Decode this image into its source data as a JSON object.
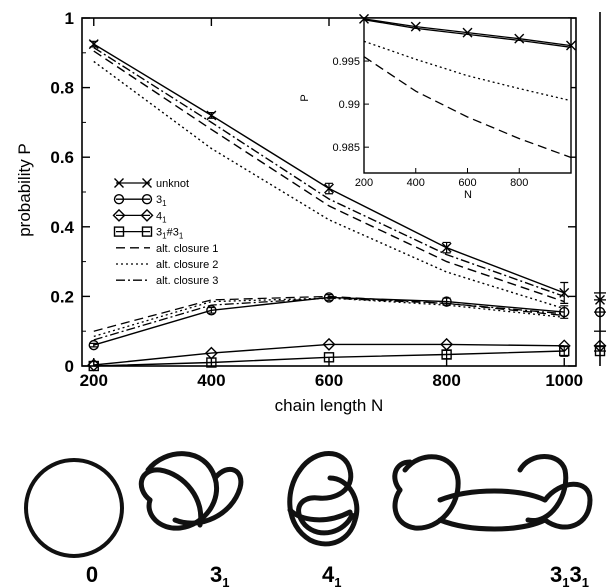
{
  "chart_data": [
    {
      "type": "line",
      "xlabel": "chain length N",
      "ylabel": "probability P",
      "xlim": [
        180,
        1020
      ],
      "ylim": [
        0,
        1
      ],
      "xticks": [
        "200",
        "400",
        "600",
        "800",
        "1000"
      ],
      "yticks": [
        "0",
        "0.2",
        "0.4",
        "0.6",
        "0.8",
        "1"
      ],
      "x": [
        200,
        400,
        600,
        800,
        1000
      ],
      "series": [
        {
          "name": "unknot",
          "marker": "x",
          "dash": "solid",
          "values": [
            0.925,
            0.72,
            0.51,
            0.34,
            0.21
          ],
          "errors": [
            0.008,
            0.008,
            0.015,
            0.015,
            0.03
          ]
        },
        {
          "name": "3",
          "sub": "1",
          "marker": "o",
          "dash": "solid",
          "values": [
            0.06,
            0.16,
            0.197,
            0.185,
            0.155
          ],
          "errors": [
            0.005,
            0.008,
            0.008,
            0.01,
            0.018
          ]
        },
        {
          "name": "4",
          "sub": "1",
          "marker": "d",
          "dash": "solid",
          "values": [
            0.003,
            0.037,
            0.062,
            0.062,
            0.058
          ],
          "errors": [
            0,
            0,
            0,
            0,
            0
          ]
        },
        {
          "name": "3",
          "sub": "1",
          "name2": "#3",
          "sub2": "1",
          "marker": "s",
          "dash": "solid",
          "values": [
            0.0,
            0.01,
            0.025,
            0.033,
            0.043
          ],
          "errors": [
            0,
            0,
            0,
            0.012,
            0.015
          ]
        },
        {
          "name": "alt. closure 1",
          "marker": "none",
          "dash": "dash",
          "values": [
            0.905,
            0.68,
            0.46,
            0.3,
            0.185
          ]
        },
        {
          "name": "alt. closure 2",
          "marker": "none",
          "dash": "dot",
          "values": [
            0.875,
            0.625,
            0.42,
            0.27,
            0.165
          ]
        },
        {
          "name": "alt. closure 3",
          "marker": "none",
          "dash": "dashdot",
          "values": [
            0.915,
            0.7,
            0.48,
            0.32,
            0.2
          ]
        }
      ],
      "knot_alt_curves": [
        {
          "dash": "dash",
          "values": [
            0.1,
            0.19,
            0.2,
            0.18,
            0.145
          ]
        },
        {
          "dash": "dot",
          "values": [
            0.085,
            0.185,
            0.195,
            0.175,
            0.14
          ]
        },
        {
          "dash": "dashdot",
          "values": [
            0.075,
            0.175,
            0.195,
            0.18,
            0.15
          ]
        }
      ]
    },
    {
      "type": "line",
      "inset": true,
      "xlabel": "N",
      "ylabel": "P",
      "xlim": [
        200,
        1000
      ],
      "ylim": [
        0.982,
        1.0
      ],
      "xticks": [
        "200",
        "400",
        "600",
        "800"
      ],
      "yticks": [
        "0.985",
        "0.99",
        "0.995"
      ],
      "x": [
        200,
        400,
        600,
        800,
        1000
      ],
      "series": [
        {
          "marker": "x",
          "dash": "solid",
          "values": [
            0.9999,
            0.999,
            0.9983,
            0.9976,
            0.9968
          ]
        },
        {
          "dash": "solid2",
          "values": [
            0.9998,
            0.9988,
            0.9981,
            0.9974,
            0.9966
          ]
        },
        {
          "dash": "dot",
          "values": [
            0.9973,
            0.9952,
            0.9933,
            0.9918,
            0.9904
          ]
        },
        {
          "dash": "dash",
          "values": [
            0.9955,
            0.9915,
            0.9885,
            0.986,
            0.9838
          ]
        }
      ]
    }
  ],
  "legend": [
    {
      "marker": "x",
      "dash": "solid",
      "label": "unknot",
      "sub": "",
      "label2": "",
      "sub2": ""
    },
    {
      "marker": "o",
      "dash": "solid",
      "label": "3",
      "sub": "1",
      "label2": "",
      "sub2": ""
    },
    {
      "marker": "d",
      "dash": "solid",
      "label": "4",
      "sub": "1",
      "label2": "",
      "sub2": ""
    },
    {
      "marker": "s",
      "dash": "solid",
      "label": "3",
      "sub": "1",
      "label2": "#3",
      "sub2": "1"
    },
    {
      "marker": "none",
      "dash": "dash",
      "label": "alt. closure 1",
      "sub": "",
      "label2": "",
      "sub2": ""
    },
    {
      "marker": "none",
      "dash": "dot",
      "label": "alt. closure 2",
      "sub": "",
      "label2": "",
      "sub2": ""
    },
    {
      "marker": "none",
      "dash": "dashdot",
      "label": "alt. closure 3",
      "sub": "",
      "label2": "",
      "sub2": ""
    }
  ],
  "knot_labels": [
    {
      "main": "0",
      "sub": ""
    },
    {
      "main": "3",
      "sub": "1"
    },
    {
      "main": "4",
      "sub": "1"
    },
    {
      "main": "3",
      "sub": "1",
      "main2": "3",
      "sub2": "1"
    }
  ],
  "side_values": [
    0.21,
    0.19,
    0.155,
    0.1,
    0.058,
    0.043
  ]
}
